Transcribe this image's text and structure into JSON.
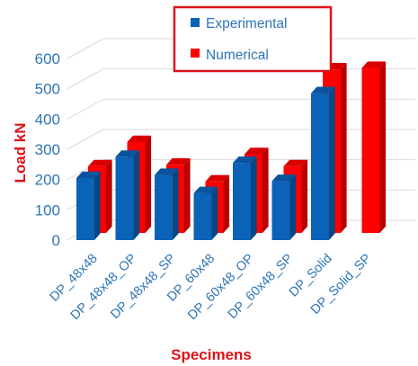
{
  "chart_data": {
    "type": "bar",
    "categories": [
      "DP_48x48",
      "DP_48x48_OP",
      "DP_48x48_SP",
      "DP_60x48",
      "DP_60x48_OP",
      "DP_60x48_SP",
      "DP_Solid",
      "DP_Solid_SP"
    ],
    "series": [
      {
        "name": "Experimental",
        "color": "#0b63b8",
        "values": [
          205,
          275,
          215,
          155,
          255,
          195,
          485,
          null
        ]
      },
      {
        "name": "Numerical",
        "color": "#ff0000",
        "values": [
          220,
          300,
          225,
          170,
          260,
          220,
          540,
          545
        ]
      }
    ],
    "xlabel": "Specimens",
    "ylabel": "Load kN",
    "ylim": [
      0,
      600
    ],
    "yticks": [
      0,
      100,
      200,
      300,
      400,
      500,
      600
    ],
    "grid": true,
    "style": "3d-clustered-column",
    "legend_position": "top-center"
  }
}
